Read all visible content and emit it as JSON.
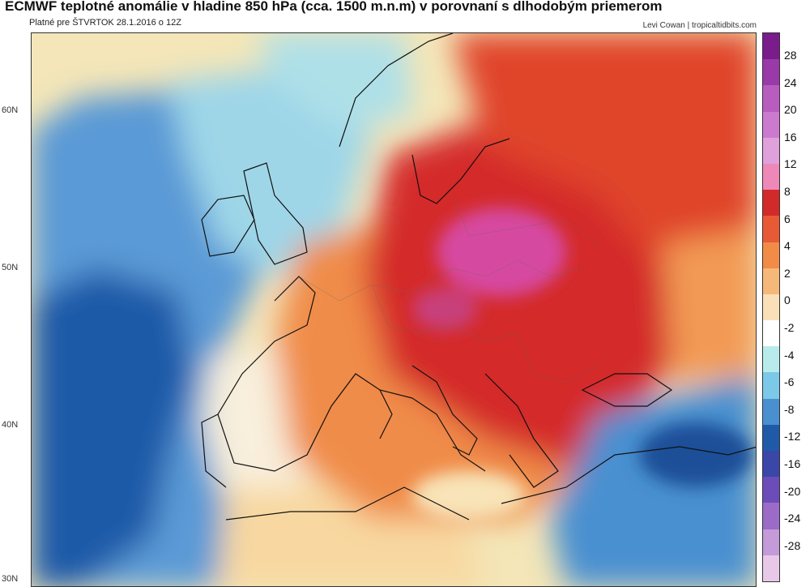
{
  "header": {
    "title": "ECMWF teplotné anomálie v hladine 850 hPa (cca. 1500 m.n.m) v porovnaní s dlhodobým priemerom",
    "subtitle": "Platné pre  ŠTVRTOK  28.1.2016 o 12Z",
    "credit": "Levi Cowan | tropicaltidbits.com"
  },
  "map": {
    "lat_labels": [
      "60N",
      "50N",
      "40N",
      "30N"
    ],
    "regions": [
      {
        "name": "atlantic-cold",
        "anomaly": -8,
        "color": "#1f5aa8"
      },
      {
        "name": "atlantic-cool",
        "anomaly": -4,
        "color": "#5a9ad6"
      },
      {
        "name": "british-isles",
        "anomaly": -2,
        "color": "#9ed6e8"
      },
      {
        "name": "iberia",
        "anomaly": 0,
        "color": "#f5f0e0"
      },
      {
        "name": "france-italy",
        "anomaly": 4,
        "color": "#f08c48"
      },
      {
        "name": "central-europe",
        "anomaly": 8,
        "color": "#d42b2b"
      },
      {
        "name": "poland-core",
        "anomaly": 12,
        "color": "#d64aa0"
      },
      {
        "name": "turkey-cold",
        "anomaly": -8,
        "color": "#2c68b8"
      },
      {
        "name": "north-africa",
        "anomaly": 2,
        "color": "#f8d8a0"
      }
    ]
  },
  "colorbar": {
    "labels": [
      "28",
      "24",
      "20",
      "16",
      "12",
      "8",
      "6",
      "4",
      "2",
      "0",
      "-2",
      "-4",
      "-6",
      "-8",
      "-12",
      "-16",
      "-20",
      "-24",
      "-28"
    ],
    "colors": [
      "#7a1c8c",
      "#9a3aa8",
      "#b85cc0",
      "#cc7ad0",
      "#e0a0dc",
      "#ee88b8",
      "#d22a2a",
      "#e85a35",
      "#f08c48",
      "#f6b878",
      "#fae0b8",
      "#ffffff",
      "#b8ecec",
      "#7cc8e8",
      "#4a90d0",
      "#1f5aa8",
      "#3a46a8",
      "#6c4cb8",
      "#9a6cc8",
      "#c49ad8",
      "#e8c8e8"
    ]
  }
}
